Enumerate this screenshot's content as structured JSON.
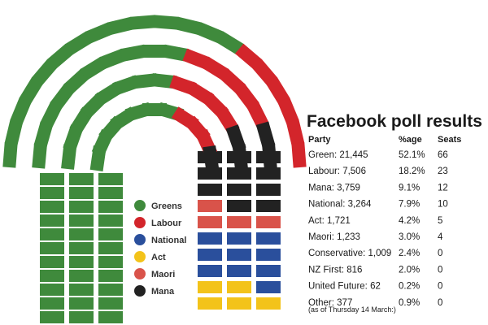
{
  "chart_data": {
    "type": "parliament",
    "title": "Facebook poll results",
    "table_headers": [
      "Party",
      "%age",
      "Seats"
    ],
    "rows": [
      {
        "party": "Green: 21,445",
        "pct": "52.1%",
        "seats": "66"
      },
      {
        "party": "Labour: 7,506",
        "pct": "18.2%",
        "seats": "23"
      },
      {
        "party": "Mana: 3,759",
        "pct": "9.1%",
        "seats": "12"
      },
      {
        "party": "National: 3,264",
        "pct": "7.9%",
        "seats": "10"
      },
      {
        "party": "Act: 1,721",
        "pct": "4.2%",
        "seats": "5"
      },
      {
        "party": "Maori: 1,233",
        "pct": "3.0%",
        "seats": "4"
      },
      {
        "party": "Conservative: 1,009",
        "pct": "2.4%",
        "seats": "0"
      },
      {
        "party": "NZ First: 816",
        "pct": "2.0%",
        "seats": "0"
      },
      {
        "party": "United Future: 62",
        "pct": "0.2%",
        "seats": "0"
      },
      {
        "party": "Other: 377",
        "pct": "0.9%",
        "seats": "0"
      }
    ],
    "note": "(as of Thursday 14 March:)",
    "legend": [
      {
        "name": "Greens",
        "color": "#3f8a3c"
      },
      {
        "name": "Labour",
        "color": "#d3252b"
      },
      {
        "name": "National",
        "color": "#2a4f9c"
      },
      {
        "name": "Act",
        "color": "#f3c31a"
      },
      {
        "name": "Maori",
        "color": "#d9534a"
      },
      {
        "name": "Mana",
        "color": "#222222"
      }
    ],
    "seat_colors": {
      "Greens": "#3f8a3c",
      "Labour": "#d3252b",
      "National": "#2a4f9c",
      "Act": "#f3c31a",
      "Maori": "#d9534a",
      "Mana": "#222222"
    },
    "right_block_rows": [
      [
        "Mana",
        "Mana",
        "Mana"
      ],
      [
        "Mana",
        "Mana",
        "Mana"
      ],
      [
        "Mana",
        "Mana",
        "Mana"
      ],
      [
        "Maori",
        "Mana",
        "Mana"
      ],
      [
        "Maori",
        "Maori",
        "Maori"
      ],
      [
        "National",
        "National",
        "National"
      ],
      [
        "National",
        "National",
        "National"
      ],
      [
        "National",
        "National",
        "National"
      ],
      [
        "Act",
        "Act",
        "National"
      ],
      [
        "Act",
        "Act",
        "Act"
      ]
    ]
  }
}
